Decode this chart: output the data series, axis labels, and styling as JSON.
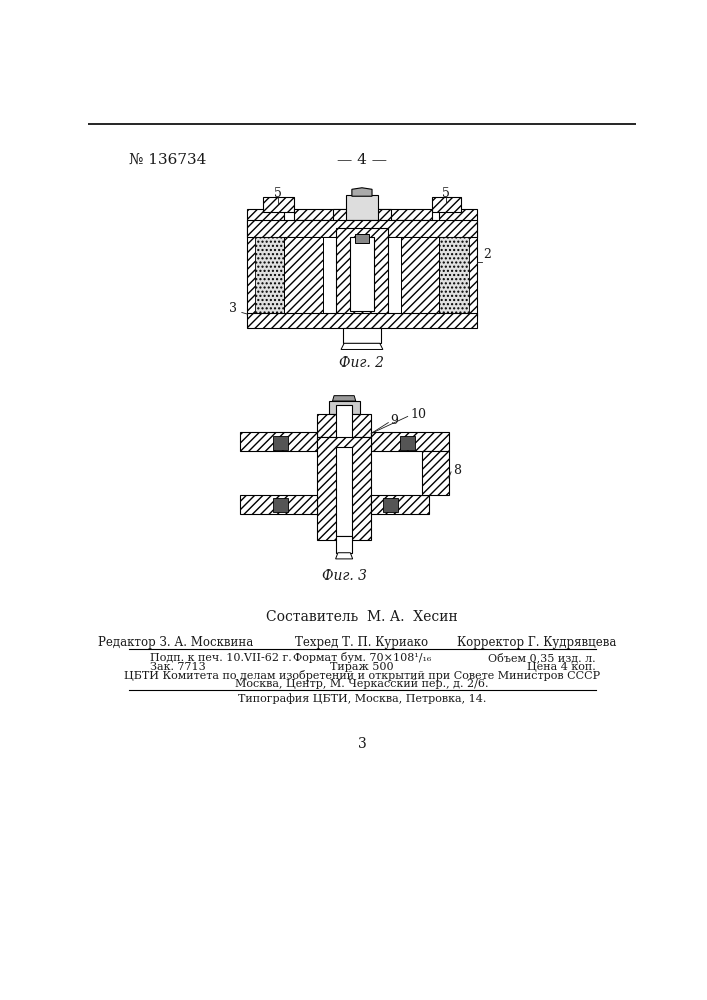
{
  "page_number_left": "№ 136734",
  "page_number_center": "— 4 —",
  "fig2_label": "Фиг. 2",
  "fig3_label": "Фиг. 3",
  "composer_line": "Составитель  М. А.  Хесин",
  "editor_line": "Редактор З. А. Москвина",
  "techred_line": "Техред Т. П. Куриако",
  "corrector_line": "Корректор Г. Кудрявцева",
  "row1_col1": "Подп. к печ. 10.VII-62 г.",
  "row1_col2": "Формат бум. 70×108¹/₁₆",
  "row1_col3": "Объем 0,35 изд. л.",
  "row2_col1": "Зак. 7713",
  "row2_col2": "Тираж 500",
  "row2_col3": "Цена 4 коп.",
  "org_line1": "ЦБТИ Комитета по делам изобретений и открытий при Совете Министров СССР",
  "org_line2": "Москва, Центр, М. Черкасский пер., д. 2/6.",
  "typo_line": "Типография ЦБТИ, Москва, Петровка, 14.",
  "page_num_bottom": "3",
  "bg_color": "#ffffff",
  "text_color": "#1a1a1a",
  "line_color": "#333333"
}
